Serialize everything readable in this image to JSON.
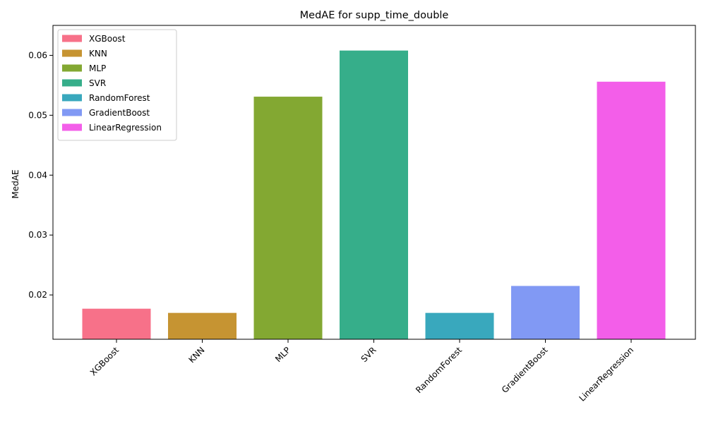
{
  "chart_data": {
    "type": "bar",
    "title": "MedAE for supp_time_double",
    "xlabel": "",
    "ylabel": "MedAE",
    "categories": [
      "XGBoost",
      "KNN",
      "MLP",
      "SVR",
      "RandomForest",
      "GradientBoost",
      "LinearRegression"
    ],
    "values": [
      0.0177,
      0.017,
      0.0531,
      0.0608,
      0.017,
      0.0215,
      0.0556
    ],
    "colors": [
      "#f77189",
      "#c69432",
      "#83a832",
      "#36ae8a",
      "#39a8bd",
      "#8199f4",
      "#f35ee9"
    ],
    "ylim": [
      0.0126,
      0.065
    ],
    "yticks": [
      0.02,
      0.03,
      0.04,
      0.05,
      0.06
    ],
    "ytick_labels": [
      "0.02",
      "0.03",
      "0.04",
      "0.05",
      "0.06"
    ],
    "grid": false,
    "legend": {
      "position": "top-left",
      "entries": [
        "XGBoost",
        "KNN",
        "MLP",
        "SVR",
        "RandomForest",
        "GradientBoost",
        "LinearRegression"
      ]
    }
  }
}
